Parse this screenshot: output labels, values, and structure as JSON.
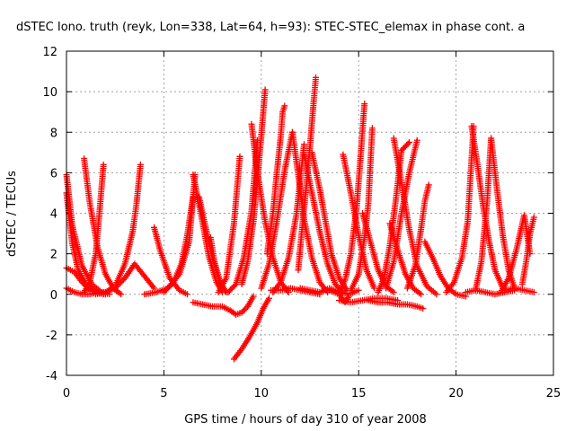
{
  "chart_data": {
    "type": "scatter",
    "title": "dSTEC Iono. truth (reyk, Lon=338, Lat=64, h=93): STEC-STEC_elemax in phase cont. a",
    "xlabel": "GPS time / hours of day 310 of year 2008",
    "ylabel": "dSTEC  / TECUs",
    "xlim": [
      0,
      25
    ],
    "ylim": [
      -4,
      12
    ],
    "x_ticks": [
      0,
      5,
      10,
      15,
      20,
      25
    ],
    "x_tick_labels": [
      "0",
      "5",
      "10",
      "15",
      "20",
      "25"
    ],
    "y_ticks": [
      -4,
      -2,
      0,
      2,
      4,
      6,
      8,
      10,
      12
    ],
    "y_tick_labels": [
      "-4",
      "-2",
      "0",
      "2",
      "4",
      "6",
      "8",
      "10",
      "12"
    ],
    "grid": true,
    "legend": "none",
    "marker": "plus",
    "color": "#ff0000",
    "arcs": [
      {
        "x": [
          0.0,
          0.3,
          0.8,
          1.3,
          1.8,
          2.2
        ],
        "y": [
          5.9,
          3.4,
          1.4,
          0.5,
          0.1,
          0.0
        ]
      },
      {
        "x": [
          0.0,
          0.3,
          0.6,
          1.0,
          1.5,
          1.9
        ],
        "y": [
          5.0,
          2.5,
          1.2,
          0.5,
          0.1,
          0.0
        ]
      },
      {
        "x": [
          0.0,
          0.4,
          0.8,
          1.2,
          1.6,
          2.0
        ],
        "y": [
          1.3,
          1.1,
          0.6,
          0.2,
          0.1,
          0.0
        ]
      },
      {
        "x": [
          0.0,
          0.4,
          0.8,
          1.2,
          1.6,
          2.0
        ],
        "y": [
          0.3,
          0.1,
          0.0,
          0.0,
          0.1,
          0.1
        ]
      },
      {
        "x": [
          0.9,
          1.2,
          1.6,
          2.0,
          2.4,
          2.8
        ],
        "y": [
          6.7,
          4.5,
          2.3,
          1.0,
          0.3,
          0.0
        ]
      },
      {
        "x": [
          0.9,
          1.2,
          1.5,
          1.7,
          1.9
        ],
        "y": [
          0.1,
          0.6,
          2.0,
          4.1,
          6.4
        ]
      },
      {
        "x": [
          2.0,
          2.5,
          3.0,
          3.4,
          3.6,
          3.8
        ],
        "y": [
          0.1,
          0.4,
          1.5,
          3.1,
          4.5,
          6.4
        ]
      },
      {
        "x": [
          1.5,
          2.0,
          2.5,
          3.0,
          3.5,
          4.0,
          4.5
        ],
        "y": [
          0.0,
          0.1,
          0.3,
          0.8,
          1.5,
          0.9,
          0.3
        ]
      },
      {
        "x": [
          4.5,
          4.8,
          5.3,
          5.8,
          6.2
        ],
        "y": [
          3.3,
          2.2,
          0.8,
          0.2,
          0.0
        ]
      },
      {
        "x": [
          4.0,
          4.6,
          5.2,
          5.8,
          6.3,
          6.6
        ],
        "y": [
          0.0,
          0.1,
          0.3,
          1.0,
          2.6,
          5.9
        ]
      },
      {
        "x": [
          5.0,
          5.5,
          5.9,
          6.2,
          6.5
        ],
        "y": [
          0.1,
          0.6,
          1.5,
          2.9,
          4.8
        ]
      },
      {
        "x": [
          6.5,
          6.9,
          7.3,
          7.7,
          8.0
        ],
        "y": [
          5.9,
          4.0,
          1.9,
          0.6,
          0.1
        ]
      },
      {
        "x": [
          6.8,
          7.1,
          7.5,
          7.9,
          8.2
        ],
        "y": [
          4.8,
          3.5,
          1.8,
          0.6,
          0.1
        ]
      },
      {
        "x": [
          7.4,
          7.6,
          7.9,
          8.2
        ],
        "y": [
          2.8,
          1.6,
          0.5,
          0.1
        ]
      },
      {
        "x": [
          7.8,
          8.2,
          8.6,
          8.9
        ],
        "y": [
          0.1,
          0.8,
          3.5,
          6.8
        ]
      },
      {
        "x": [
          6.5,
          7.0,
          7.5,
          8.0,
          8.4,
          8.7,
          9.0,
          9.3,
          9.6
        ],
        "y": [
          -0.4,
          -0.5,
          -0.6,
          -0.6,
          -0.8,
          -1.0,
          -0.9,
          -0.6,
          -0.1
        ]
      },
      {
        "x": [
          8.6,
          9.0,
          9.4,
          9.8,
          10.1,
          10.4
        ],
        "y": [
          -3.2,
          -2.7,
          -2.1,
          -1.4,
          -0.7,
          -0.2
        ]
      },
      {
        "x": [
          9.0,
          9.3,
          9.6,
          9.8,
          10.0,
          10.2
        ],
        "y": [
          0.5,
          1.6,
          3.6,
          5.6,
          7.8,
          10.1
        ]
      },
      {
        "x": [
          8.3,
          8.7,
          9.1,
          9.5,
          9.8
        ],
        "y": [
          0.1,
          0.5,
          1.8,
          4.1,
          7.6
        ]
      },
      {
        "x": [
          9.5,
          9.8,
          10.2,
          10.6,
          11.0,
          11.4
        ],
        "y": [
          8.4,
          6.0,
          3.6,
          1.8,
          0.6,
          0.1
        ]
      },
      {
        "x": [
          10.0,
          10.4,
          10.8,
          11.2,
          11.6
        ],
        "y": [
          0.3,
          1.5,
          3.6,
          6.1,
          8.0
        ]
      },
      {
        "x": [
          10.3,
          10.6,
          10.8,
          11.0,
          11.1,
          11.2
        ],
        "y": [
          2.0,
          4.0,
          6.0,
          7.8,
          9.0,
          9.3
        ]
      },
      {
        "x": [
          10.6,
          11.0,
          11.4,
          11.8,
          12.2
        ],
        "y": [
          0.1,
          0.6,
          1.8,
          3.9,
          7.4
        ]
      },
      {
        "x": [
          10.5,
          11.0,
          11.5,
          12.0,
          12.5,
          13.0
        ],
        "y": [
          0.2,
          0.2,
          0.3,
          0.2,
          0.1,
          0.0
        ]
      },
      {
        "x": [
          11.9,
          12.1,
          12.3,
          12.5,
          12.7,
          12.8
        ],
        "y": [
          1.2,
          3.3,
          5.2,
          7.3,
          9.6,
          10.7
        ]
      },
      {
        "x": [
          11.6,
          11.9,
          12.2,
          12.6,
          13.0,
          13.4
        ],
        "y": [
          8.0,
          5.9,
          3.7,
          1.8,
          0.6,
          0.1
        ]
      },
      {
        "x": [
          12.2,
          12.6,
          13.0,
          13.4,
          13.8,
          14.2
        ],
        "y": [
          6.9,
          5.0,
          3.1,
          1.5,
          0.5,
          0.1
        ]
      },
      {
        "x": [
          12.6,
          13.0,
          13.3,
          13.6,
          14.0,
          14.4
        ],
        "y": [
          7.0,
          5.2,
          3.6,
          2.0,
          0.8,
          0.2
        ]
      },
      {
        "x": [
          12.0,
          12.5,
          13.0,
          13.5,
          14.0,
          14.5,
          15.0
        ],
        "y": [
          0.3,
          0.2,
          0.1,
          0.3,
          0.1,
          0.0,
          0.2
        ]
      },
      {
        "x": [
          13.5,
          14.0,
          14.3,
          14.5
        ],
        "y": [
          0.2,
          0.0,
          -0.4,
          -0.1
        ]
      },
      {
        "x": [
          14.0,
          14.3,
          14.6,
          14.9,
          15.1,
          15.3
        ],
        "y": [
          0.1,
          0.7,
          2.0,
          4.3,
          6.8,
          9.4
        ]
      },
      {
        "x": [
          14.2,
          14.6,
          15.0,
          15.4,
          15.8
        ],
        "y": [
          6.9,
          5.0,
          2.9,
          1.2,
          0.3
        ]
      },
      {
        "x": [
          14.6,
          15.0,
          15.3,
          15.5,
          15.7
        ],
        "y": [
          0.2,
          1.0,
          2.8,
          4.5,
          8.2
        ]
      },
      {
        "x": [
          14.0,
          14.6,
          15.2,
          15.8,
          16.4,
          17.0
        ],
        "y": [
          -0.3,
          -0.4,
          -0.3,
          -0.2,
          -0.2,
          -0.3
        ]
      },
      {
        "x": [
          15.5,
          16.0,
          16.5,
          17.0,
          17.5,
          18.0,
          18.3
        ],
        "y": [
          -0.3,
          -0.4,
          -0.4,
          -0.5,
          -0.5,
          -0.6,
          -0.7
        ]
      },
      {
        "x": [
          15.2,
          15.6,
          16.0,
          16.4,
          16.8
        ],
        "y": [
          4.0,
          2.6,
          1.2,
          0.4,
          0.1
        ]
      },
      {
        "x": [
          16.0,
          16.3,
          16.6,
          16.9,
          17.2,
          17.6
        ],
        "y": [
          0.1,
          0.8,
          2.4,
          4.6,
          7.1,
          7.5
        ]
      },
      {
        "x": [
          16.4,
          16.8,
          17.2,
          17.6,
          18.0
        ],
        "y": [
          0.3,
          1.6,
          4.0,
          6.0,
          7.6
        ]
      },
      {
        "x": [
          16.6,
          17.0,
          17.4,
          17.8,
          18.2
        ],
        "y": [
          3.5,
          2.2,
          1.0,
          0.3,
          0.0
        ]
      },
      {
        "x": [
          16.8,
          17.2,
          17.6,
          18.0,
          18.5,
          19.0
        ],
        "y": [
          7.7,
          5.5,
          3.2,
          1.4,
          0.4,
          0.0
        ]
      },
      {
        "x": [
          17.5,
          17.9,
          18.2,
          18.4,
          18.6
        ],
        "y": [
          0.3,
          1.4,
          3.2,
          4.6,
          5.4
        ]
      },
      {
        "x": [
          18.4,
          18.8,
          19.2,
          19.6,
          20.0,
          20.5
        ],
        "y": [
          2.6,
          1.8,
          0.9,
          0.3,
          0.0,
          -0.1
        ]
      },
      {
        "x": [
          19.5,
          19.9,
          20.3,
          20.6,
          20.9
        ],
        "y": [
          0.1,
          0.6,
          1.8,
          3.6,
          8.3
        ]
      },
      {
        "x": [
          20.8,
          21.1,
          21.4,
          21.7,
          22.0,
          22.4
        ],
        "y": [
          8.3,
          6.4,
          4.3,
          2.6,
          1.2,
          0.3
        ]
      },
      {
        "x": [
          21.0,
          21.3,
          21.6,
          21.8
        ],
        "y": [
          0.2,
          1.6,
          4.6,
          7.7
        ]
      },
      {
        "x": [
          21.8,
          22.1,
          22.4,
          22.7,
          23.0
        ],
        "y": [
          7.7,
          5.2,
          2.9,
          1.2,
          0.3
        ]
      },
      {
        "x": [
          20.5,
          21.0,
          21.5,
          22.0,
          22.5,
          23.0
        ],
        "y": [
          0.1,
          0.2,
          0.1,
          0.0,
          0.1,
          0.2
        ]
      },
      {
        "x": [
          22.3,
          22.7,
          23.1,
          23.5,
          23.8
        ],
        "y": [
          0.1,
          0.8,
          2.2,
          3.9,
          2.0
        ]
      },
      {
        "x": [
          23.4,
          23.6,
          23.8,
          24.0
        ],
        "y": [
          0.5,
          1.6,
          3.0,
          3.8
        ]
      },
      {
        "x": [
          22.5,
          23.0,
          23.5,
          24.0
        ],
        "y": [
          0.2,
          0.3,
          0.2,
          0.1
        ]
      }
    ]
  }
}
